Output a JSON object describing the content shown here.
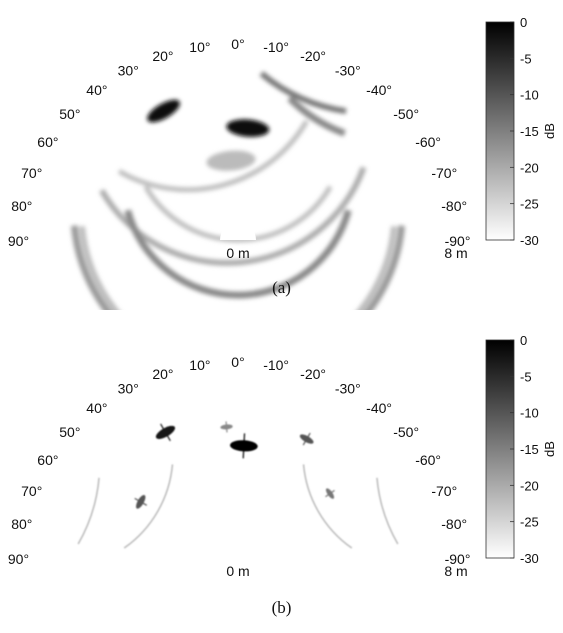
{
  "chart_data": [
    {
      "type": "heatmap",
      "projection": "polar-sector",
      "caption": "(a)",
      "angle_ticks": [
        "90°",
        "80°",
        "70°",
        "60°",
        "50°",
        "40°",
        "30°",
        "20°",
        "10°",
        "0°",
        "-10°",
        "-20°",
        "-30°",
        "-40°",
        "-50°",
        "-60°",
        "-70°",
        "-80°",
        "-90°"
      ],
      "angle_values": [
        90,
        80,
        70,
        60,
        50,
        40,
        30,
        20,
        10,
        0,
        -10,
        -20,
        -30,
        -40,
        -50,
        -60,
        -70,
        -80,
        -90
      ],
      "range_labels": [
        "0 m",
        "8 m"
      ],
      "range_lim": [
        0,
        8
      ],
      "colorbar": {
        "label": "dB",
        "ticks": [
          "0",
          "-5",
          "-10",
          "-15",
          "-20",
          "-25",
          "-30"
        ],
        "tick_values": [
          0,
          -5,
          -10,
          -15,
          -20,
          -25,
          -30
        ],
        "lim": [
          -30,
          0
        ],
        "colormap": "gray-reversed"
      },
      "arcs": [
        {
          "range": 7.6,
          "theta_from": -85,
          "theta_to": 85,
          "level": -18,
          "width": 0.35
        },
        {
          "range": 7.2,
          "theta_from": -85,
          "theta_to": 85,
          "level": -22,
          "width": 0.3
        },
        {
          "range": 6.6,
          "theta_from": -60,
          "theta_to": 70,
          "level": -20,
          "width": 0.3
        },
        {
          "range": 6.2,
          "theta_from": -30,
          "theta_to": 60,
          "level": -22,
          "width": 0.25
        },
        {
          "range": 5.0,
          "theta_from": -75,
          "theta_to": 75,
          "level": -16,
          "width": 0.35
        },
        {
          "range": 4.6,
          "theta_from": -60,
          "theta_to": 60,
          "level": -22,
          "width": 0.25
        },
        {
          "range": 7.8,
          "theta_from": -40,
          "theta_to": -8,
          "level": -14,
          "width": 0.3
        },
        {
          "range": 6.9,
          "theta_from": -45,
          "theta_to": -20,
          "level": -16,
          "width": 0.35
        }
      ],
      "blobs": [
        {
          "range": 6.8,
          "theta": 30,
          "level": -2,
          "size": 0.6
        },
        {
          "range": 4.9,
          "theta": -5,
          "level": -1,
          "size": 0.7
        },
        {
          "range": 3.2,
          "theta": 5,
          "level": -22,
          "size": 0.8
        }
      ]
    },
    {
      "type": "heatmap",
      "projection": "polar-sector",
      "caption": "(b)",
      "angle_ticks": [
        "90°",
        "80°",
        "70°",
        "60°",
        "50°",
        "40°",
        "30°",
        "20°",
        "10°",
        "0°",
        "-10°",
        "-20°",
        "-30°",
        "-40°",
        "-50°",
        "-60°",
        "-70°",
        "-80°",
        "-90°"
      ],
      "angle_values": [
        90,
        80,
        70,
        60,
        50,
        40,
        30,
        20,
        10,
        0,
        -10,
        -20,
        -30,
        -40,
        -50,
        -60,
        -70,
        -80,
        -90
      ],
      "range_labels": [
        "0 m",
        "8 m"
      ],
      "range_lim": [
        0,
        8
      ],
      "colorbar": {
        "label": "dB",
        "ticks": [
          "0",
          "-5",
          "-10",
          "-15",
          "-20",
          "-25",
          "-30"
        ],
        "tick_values": [
          0,
          -5,
          -10,
          -15,
          -20,
          -25,
          -30
        ],
        "lim": [
          -30,
          0
        ],
        "colormap": "gray-reversed"
      },
      "arcs": [
        {
          "range": 7.4,
          "theta_from": 60,
          "theta_to": 85,
          "level": -22,
          "width": 0.08
        },
        {
          "range": 7.4,
          "theta_from": -85,
          "theta_to": -60,
          "level": -22,
          "width": 0.08
        },
        {
          "range": 5.0,
          "theta_from": 35,
          "theta_to": 85,
          "level": -22,
          "width": 0.08
        },
        {
          "range": 5.0,
          "theta_from": -85,
          "theta_to": -35,
          "level": -22,
          "width": 0.08
        }
      ],
      "blobs": [
        {
          "range": 6.6,
          "theta": 30,
          "level": -3,
          "size": 0.35
        },
        {
          "range": 4.9,
          "theta": -3,
          "level": 0,
          "size": 0.45
        },
        {
          "range": 6.2,
          "theta": -30,
          "level": -10,
          "size": 0.25
        },
        {
          "range": 5.9,
          "theta": 5,
          "level": -16,
          "size": 0.2
        },
        {
          "range": 4.9,
          "theta": 60,
          "level": -10,
          "size": 0.25
        },
        {
          "range": 4.9,
          "theta": -55,
          "level": -14,
          "size": 0.2
        }
      ]
    }
  ]
}
